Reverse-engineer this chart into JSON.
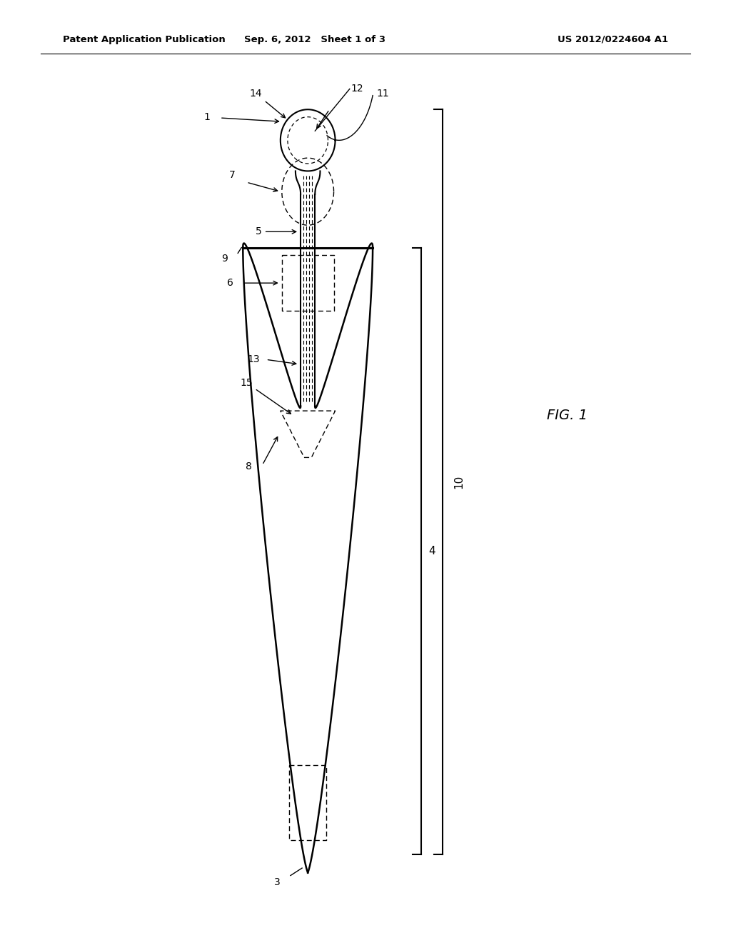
{
  "patent_header_left": "Patent Application Publication",
  "patent_header_mid": "Sep. 6, 2012   Sheet 1 of 3",
  "patent_header_right": "US 2012/0224604 A1",
  "background_color": "#ffffff",
  "line_color": "#000000",
  "fig_label": "FIG. 1"
}
